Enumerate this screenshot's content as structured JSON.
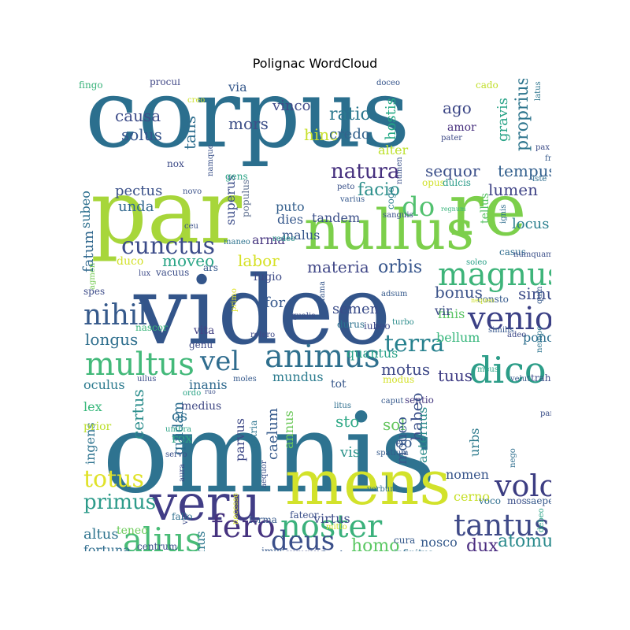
{
  "title": "Polignac WordCloud",
  "words": [
    {
      "text": "corpus",
      "color": "#2b6f8e"
    },
    {
      "text": "par",
      "color": "#a7d63a"
    },
    {
      "text": "re",
      "color": "#7ccf4b"
    },
    {
      "text": "nullus",
      "color": "#7ccf4b"
    },
    {
      "text": "video",
      "color": "#33558a"
    },
    {
      "text": "omnis",
      "color": "#2e7390"
    },
    {
      "text": "mens",
      "color": "#d2e22b"
    },
    {
      "text": "veru",
      "color": "#413d86"
    },
    {
      "text": "magnus",
      "color": "#3eb47a"
    },
    {
      "text": "animus",
      "color": "#2f708e"
    },
    {
      "text": "multus",
      "color": "#43b97a"
    },
    {
      "text": "dico",
      "color": "#2c9d88"
    },
    {
      "text": "noster",
      "color": "#3bb17c"
    },
    {
      "text": "tantus",
      "color": "#3f4a88"
    },
    {
      "text": "volo",
      "color": "#3c3d82"
    },
    {
      "text": "venio",
      "color": "#3b4085"
    },
    {
      "text": "terra",
      "color": "#27818e"
    },
    {
      "text": "alius",
      "color": "#49bc77"
    },
    {
      "text": "fero",
      "color": "#46337f"
    },
    {
      "text": "deus",
      "color": "#3b4f8a"
    },
    {
      "text": "nihil",
      "color": "#35598b"
    },
    {
      "text": "vel",
      "color": "#2f6c8e"
    },
    {
      "text": "cunctus",
      "color": "#3b4b89"
    },
    {
      "text": "natura",
      "color": "#46307e"
    },
    {
      "text": "do",
      "color": "#52c16f"
    },
    {
      "text": "totus",
      "color": "#e0e22a"
    },
    {
      "text": "primus",
      "color": "#2d9b8a"
    },
    {
      "text": "homo",
      "color": "#5bc863"
    },
    {
      "text": "atomus",
      "color": "#2a8a8c"
    },
    {
      "text": "dux",
      "color": "#4b2d80"
    },
    {
      "text": "causa",
      "color": "#3d4c89"
    },
    {
      "text": "solus",
      "color": "#36558c"
    },
    {
      "text": "tempus",
      "color": "#325f8d"
    },
    {
      "text": "sequor",
      "color": "#3c508a"
    },
    {
      "text": "proprius",
      "color": "#2f768e"
    },
    {
      "text": "facio",
      "color": "#2d8f8b"
    },
    {
      "text": "lumen",
      "color": "#404486"
    },
    {
      "text": "locus",
      "color": "#2a7f8e"
    },
    {
      "text": "ratio",
      "color": "#2b788e"
    },
    {
      "text": "ago",
      "color": "#3b4686"
    },
    {
      "text": "hinc",
      "color": "#c8e02b"
    },
    {
      "text": "credo",
      "color": "#34618c"
    },
    {
      "text": "mors",
      "color": "#3d4f88"
    },
    {
      "text": "vinco",
      "color": "#3f4988"
    },
    {
      "text": "via",
      "color": "#35588b"
    },
    {
      "text": "talis",
      "color": "#2e6e8e"
    },
    {
      "text": "amor",
      "color": "#462f7d"
    },
    {
      "text": "gravis",
      "color": "#2aa488"
    },
    {
      "text": "alter",
      "color": "#bde02c"
    },
    {
      "text": "hostis",
      "color": "#24a985"
    },
    {
      "text": "orbis",
      "color": "#35548b"
    },
    {
      "text": "materia",
      "color": "#404787"
    },
    {
      "text": "labor",
      "color": "#d6e126"
    },
    {
      "text": "moveo",
      "color": "#2aa586"
    },
    {
      "text": "bonus",
      "color": "#3b5289"
    },
    {
      "text": "simul",
      "color": "#3b4a87"
    },
    {
      "text": "longus",
      "color": "#2f6f8e"
    },
    {
      "text": "motus",
      "color": "#3e4887"
    },
    {
      "text": "tuus",
      "color": "#3d3a83"
    },
    {
      "text": "for",
      "color": "#34568b"
    },
    {
      "text": "semen",
      "color": "#3a4c89"
    },
    {
      "text": "mundus",
      "color": "#2a7b8e"
    },
    {
      "text": "oculus",
      "color": "#2b7a8e"
    },
    {
      "text": "inanis",
      "color": "#306a8e"
    },
    {
      "text": "pono",
      "color": "#2c6e8e"
    },
    {
      "text": "bellum",
      "color": "#36b67b"
    },
    {
      "text": "finis",
      "color": "#5ac463"
    },
    {
      "text": "vir",
      "color": "#3c4a87"
    },
    {
      "text": "quantus",
      "color": "#24a086"
    },
    {
      "text": "tot",
      "color": "#38588b"
    },
    {
      "text": "sentio",
      "color": "#45387f"
    },
    {
      "text": "habeo",
      "color": "#3a4f89"
    },
    {
      "text": "urbs",
      "color": "#2e7b8d"
    },
    {
      "text": "certus",
      "color": "#2b8d8c"
    },
    {
      "text": "os",
      "color": "#2f6e8e"
    },
    {
      "text": "rex",
      "color": "#2ea285"
    },
    {
      "text": "quidam",
      "color": "#2a6c8e"
    },
    {
      "text": "caelum",
      "color": "#35598b"
    },
    {
      "text": "annus",
      "color": "#6cc85a"
    },
    {
      "text": "sto",
      "color": "#2fa986"
    },
    {
      "text": "sol",
      "color": "#64c55e"
    },
    {
      "text": "vis",
      "color": "#2c938b"
    },
    {
      "text": "eo",
      "color": "#35588b"
    },
    {
      "text": "moueo",
      "color": "#38578b"
    },
    {
      "text": "aeternus",
      "color": "#2c8d8c"
    },
    {
      "text": "parvus",
      "color": "#404a88"
    },
    {
      "text": "patria",
      "color": "#2c748e"
    },
    {
      "text": "nomen",
      "color": "#37558b"
    },
    {
      "text": "cerno",
      "color": "#c7e02a"
    },
    {
      "text": "virtus",
      "color": "#3e4d89"
    },
    {
      "text": "nosco",
      "color": "#35598b"
    },
    {
      "text": "pectus",
      "color": "#3b5189"
    },
    {
      "text": "unda",
      "color": "#31688e"
    },
    {
      "text": "superus",
      "color": "#3a4b88"
    },
    {
      "text": "populus",
      "color": "#5e6f90"
    },
    {
      "text": "puto",
      "color": "#35608d"
    },
    {
      "text": "dies",
      "color": "#35578b"
    },
    {
      "text": "malus",
      "color": "#37568b"
    },
    {
      "text": "tandem",
      "color": "#3c5089"
    },
    {
      "text": "arma",
      "color": "#46357f"
    },
    {
      "text": "subeo",
      "color": "#2c6f8e"
    },
    {
      "text": "fatum",
      "color": "#31688e"
    },
    {
      "text": "ingens",
      "color": "#2c728e"
    },
    {
      "text": "altus",
      "color": "#2e748e"
    },
    {
      "text": "fortuna",
      "color": "#2f6d8e"
    },
    {
      "text": "manus",
      "color": "#2e778e"
    },
    {
      "text": "medius",
      "color": "#404985"
    },
    {
      "text": "fugio",
      "color": "#3b4986"
    },
    {
      "text": "vita",
      "color": "#444283"
    },
    {
      "text": "genu",
      "color": "#404a87"
    },
    {
      "text": "teneo",
      "color": "#6ccb5a"
    },
    {
      "text": "lex",
      "color": "#35b779"
    },
    {
      "text": "prior",
      "color": "#bcdf2b"
    },
    {
      "text": "fingo",
      "color": "#3ab37b"
    },
    {
      "text": "procul",
      "color": "#404786"
    },
    {
      "text": "doceo",
      "color": "#36558b"
    },
    {
      "text": "cado",
      "color": "#c1de2a"
    },
    {
      "text": "latus",
      "color": "#2c748d"
    },
    {
      "text": "creo",
      "color": "#cde12d"
    },
    {
      "text": "namque",
      "color": "#3a5189"
    },
    {
      "text": "gens",
      "color": "#2ca486"
    },
    {
      "text": "nox",
      "color": "#3b4986"
    },
    {
      "text": "novo",
      "color": "#3a5189"
    },
    {
      "text": "numen",
      "color": "#3a5189"
    },
    {
      "text": "pater",
      "color": "#3f4c87"
    },
    {
      "text": "pax",
      "color": "#3b4b87"
    },
    {
      "text": "frons",
      "color": "#35588a"
    },
    {
      "text": "opus",
      "color": "#d0e12c"
    },
    {
      "text": "dulcis",
      "color": "#2a9c88"
    },
    {
      "text": "iste",
      "color": "#2e6d8e"
    },
    {
      "text": "peto",
      "color": "#3a5189"
    },
    {
      "text": "varius",
      "color": "#33578c"
    },
    {
      "text": "cogo",
      "color": "#2a7d8e"
    },
    {
      "text": "regnum",
      "color": "#39b47b"
    },
    {
      "text": "tellus",
      "color": "#58c265"
    },
    {
      "text": "ignis",
      "color": "#2f6e8e"
    },
    {
      "text": "sanguis",
      "color": "#3a4f89"
    },
    {
      "text": "ceu",
      "color": "#3a5089"
    },
    {
      "text": "maneo",
      "color": "#2d738e"
    },
    {
      "text": "redeo",
      "color": "#2c938a"
    },
    {
      "text": "casus",
      "color": "#2e6c8e"
    },
    {
      "text": "numquam",
      "color": "#3b4f89"
    },
    {
      "text": "soleo",
      "color": "#2aa087"
    },
    {
      "text": "duco",
      "color": "#d3e12a"
    },
    {
      "text": "lux",
      "color": "#3e4b88"
    },
    {
      "text": "vacuus",
      "color": "#3c4e88"
    },
    {
      "text": "ars",
      "color": "#35588b"
    },
    {
      "text": "agmen",
      "color": "#75cb52"
    },
    {
      "text": "spes",
      "color": "#3b4a88"
    },
    {
      "text": "fama",
      "color": "#38578b"
    },
    {
      "text": "primo",
      "color": "#e0e32b"
    },
    {
      "text": "adsum",
      "color": "#35598b"
    },
    {
      "text": "consto",
      "color": "#35598b"
    },
    {
      "text": "nequeo",
      "color": "#cde12b"
    },
    {
      "text": "quin",
      "color": "#35588b"
    },
    {
      "text": "nascor",
      "color": "#3ab57b"
    },
    {
      "text": "qualis",
      "color": "#3b4b89"
    },
    {
      "text": "durus",
      "color": "#2c718e"
    },
    {
      "text": "turbo",
      "color": "#2c8d8c"
    },
    {
      "text": "similis",
      "color": "#35578c"
    },
    {
      "text": "adeo",
      "color": "#3e4a88"
    },
    {
      "text": "refero",
      "color": "#404a87"
    },
    {
      "text": "iubeo",
      "color": "#3c4787"
    },
    {
      "text": "nempe",
      "color": "#2c748e"
    },
    {
      "text": "ullus",
      "color": "#3a4b88"
    },
    {
      "text": "moles",
      "color": "#35598b"
    },
    {
      "text": "modus",
      "color": "#d3e12b"
    },
    {
      "text": "meus",
      "color": "#2ca386"
    },
    {
      "text": "velut",
      "color": "#35598b"
    },
    {
      "text": "traho",
      "color": "#3b4a88"
    },
    {
      "text": "ordo",
      "color": "#2ca486"
    },
    {
      "text": "litus",
      "color": "#2e6e8e"
    },
    {
      "text": "caput",
      "color": "#35588b"
    },
    {
      "text": "paro",
      "color": "#3b4f89"
    },
    {
      "text": "umbra",
      "color": "#2ca386"
    },
    {
      "text": "servo",
      "color": "#3b4f89"
    },
    {
      "text": "spatium",
      "color": "#35598b"
    },
    {
      "text": "nego",
      "color": "#2e6e8e"
    },
    {
      "text": "aura",
      "color": "#3b4a88"
    },
    {
      "text": "aequor",
      "color": "#3a5089"
    },
    {
      "text": "verbum",
      "color": "#2c718e"
    },
    {
      "text": "fallo",
      "color": "#2e6f8e"
    },
    {
      "text": "vis2",
      "color": "#3e4c89"
    },
    {
      "text": "necesse",
      "color": "#d6e22b"
    },
    {
      "text": "forma",
      "color": "#35588b"
    },
    {
      "text": "fateor",
      "color": "#3a4f89"
    },
    {
      "text": "mitto",
      "color": "#d1e12b"
    },
    {
      "text": "voco",
      "color": "#2e6e8e"
    },
    {
      "text": "mos",
      "color": "#3b4f89"
    },
    {
      "text": "saepe",
      "color": "#35588b"
    },
    {
      "text": "debeo",
      "color": "#2ca386"
    },
    {
      "text": "cura",
      "color": "#35598b"
    },
    {
      "text": "infinitus",
      "color": "#2e6e8e"
    },
    {
      "text": "centrum",
      "color": "#3a4f89"
    },
    {
      "text": "aether",
      "color": "#3b4988"
    },
    {
      "text": "imus",
      "color": "#35588b"
    },
    {
      "text": "summus",
      "color": "#3b4a88"
    },
    {
      "text": "fundo",
      "color": "#35598b"
    },
    {
      "text": "ruo",
      "color": "#3b4f89"
    }
  ]
}
